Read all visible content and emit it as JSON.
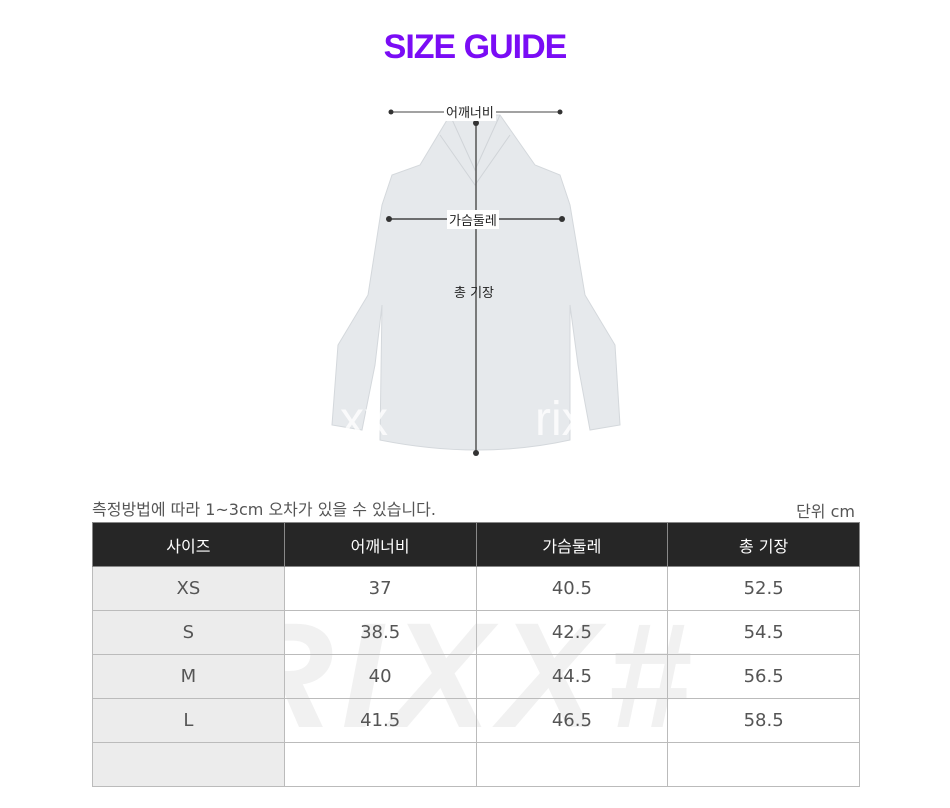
{
  "title": "SIZE GUIDE",
  "figure": {
    "shoulder_label": "어깨너비",
    "chest_label": "가슴둘레",
    "length_label": "총 기장",
    "watermark": "rix"
  },
  "note": "측정방법에 따라 1~3cm 오차가 있을 수 있습니다.",
  "unit": "단위 cm",
  "table": {
    "headers": [
      "사이즈",
      "어깨너비",
      "가슴둘레",
      "총 기장"
    ],
    "rows": [
      [
        "XS",
        "37",
        "40.5",
        "52.5"
      ],
      [
        "S",
        "38.5",
        "42.5",
        "54.5"
      ],
      [
        "M",
        "40",
        "44.5",
        "56.5"
      ],
      [
        "L",
        "41.5",
        "46.5",
        "58.5"
      ],
      [
        "",
        "",
        "",
        ""
      ]
    ]
  },
  "watermark": "RIXX#",
  "colors": {
    "title": "#7a0cf5",
    "header_bg": "#262626"
  }
}
